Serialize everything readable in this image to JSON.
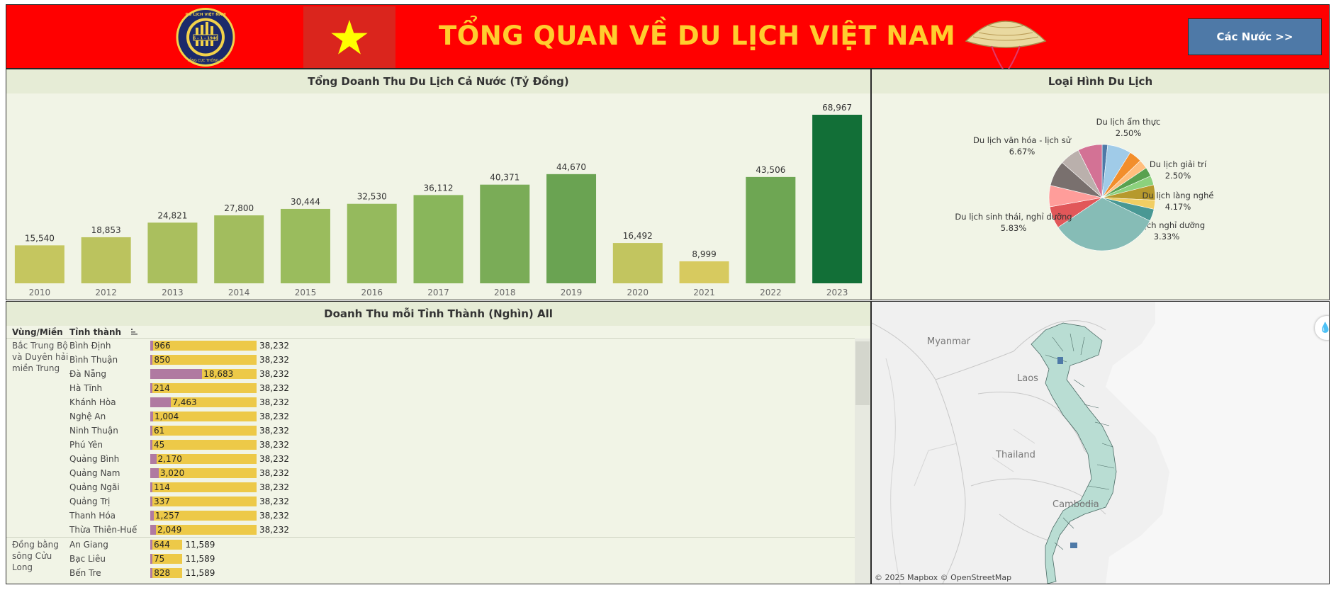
{
  "banner": {
    "title": "TỔNG QUAN VỀ DU LỊCH VIỆT NAM",
    "nav_button": "Các Nước >>",
    "logo": {
      "top_text": "DU LỊCH VIỆT NAM",
      "center_text": "6 - 1 - 1946",
      "bottom_text": "TỔNG CỤC THỐNG KÊ"
    },
    "colors": {
      "background": "#ff0000",
      "title": "#ffcd2e",
      "button": "#4e79a7"
    }
  },
  "revenue_panel": {
    "title": "Tổng Doanh Thu Du Lịch Cả Nước (Tỷ Đồng)"
  },
  "pie_panel": {
    "title": "Loại Hình Du Lịch"
  },
  "province_panel": {
    "title": "Doanh Thu mỗi Tỉnh Thành (Nghìn) All",
    "col_region": "Vùng/Miền",
    "col_province": "Tỉnh thành",
    "sort_icon": "sort-icon",
    "regions": [
      {
        "name": "Bắc Trung Bộ và Duyên hải miền Trung",
        "total": 38232,
        "total_label": "38,232",
        "rows": [
          {
            "name": "Bình Định",
            "value": 966,
            "label": "966"
          },
          {
            "name": "Bình Thuận",
            "value": 850,
            "label": "850"
          },
          {
            "name": "Đà Nẵng",
            "value": 18683,
            "label": "18,683"
          },
          {
            "name": "Hà Tĩnh",
            "value": 214,
            "label": "214"
          },
          {
            "name": "Khánh Hòa",
            "value": 7463,
            "label": "7,463"
          },
          {
            "name": "Nghệ An",
            "value": 1004,
            "label": "1,004"
          },
          {
            "name": "Ninh Thuận",
            "value": 61,
            "label": "61"
          },
          {
            "name": "Phú Yên",
            "value": 45,
            "label": "45"
          },
          {
            "name": "Quảng Bình",
            "value": 2170,
            "label": "2,170"
          },
          {
            "name": "Quảng Nam",
            "value": 3020,
            "label": "3,020"
          },
          {
            "name": "Quảng Ngãi",
            "value": 114,
            "label": "114"
          },
          {
            "name": "Quảng Trị",
            "value": 337,
            "label": "337"
          },
          {
            "name": "Thanh Hóa",
            "value": 1257,
            "label": "1,257"
          },
          {
            "name": "Thừa Thiên-Huế",
            "value": 2049,
            "label": "2,049"
          }
        ]
      },
      {
        "name": "Đồng bằng sông Cửu Long",
        "total": 11589,
        "total_label": "11,589",
        "rows": [
          {
            "name": "An Giang",
            "value": 644,
            "label": "644"
          },
          {
            "name": "Bạc Liêu",
            "value": 75,
            "label": "75"
          },
          {
            "name": "Bến Tre",
            "value": 828,
            "label": "828"
          }
        ]
      }
    ],
    "colors": {
      "total_bar": "#edc948",
      "value_bar": "#b07aa1"
    }
  },
  "map_panel": {
    "labels": [
      "Myanmar",
      "Laos",
      "Thailand",
      "Cambodia"
    ],
    "credit": "© 2025 Mapbox  © OpenStreetMap",
    "control_icon": "droplet-icon"
  },
  "chart_data": [
    {
      "type": "bar",
      "title": "Tổng Doanh Thu Du Lịch Cả Nước (Tỷ Đồng)",
      "categories": [
        "2010",
        "2012",
        "2013",
        "2014",
        "2015",
        "2016",
        "2017",
        "2018",
        "2019",
        "2020",
        "2021",
        "2022",
        "2023"
      ],
      "values": [
        15540,
        18853,
        24821,
        27800,
        30444,
        32530,
        36112,
        40371,
        44670,
        16492,
        8999,
        43506,
        68967
      ],
      "labels": [
        "15,540",
        "18,853",
        "24,821",
        "27,800",
        "30,444",
        "32,530",
        "36,112",
        "40,371",
        "44,670",
        "16,492",
        "8,999",
        "43,506",
        "68,967"
      ],
      "ylim": [
        0,
        68967
      ],
      "color_scale": {
        "low": "#f1d060",
        "mid": "#8fb95d",
        "high": "#126f37"
      },
      "grid": false
    },
    {
      "type": "pie",
      "title": "Loại Hình Du Lịch",
      "slices": [
        {
          "label": "",
          "value": 1.5,
          "color": "#4e79a7"
        },
        {
          "label": "",
          "value": 6.5,
          "color": "#a0cbe8"
        },
        {
          "label": "",
          "value": 3.5,
          "color": "#f28e2b"
        },
        {
          "label": "Du lịch ẩm thực",
          "pct_label": "2.50%",
          "value": 2.5,
          "color": "#ffbe7d"
        },
        {
          "label": "Du lịch giải trí",
          "pct_label": "2.50%",
          "value": 2.5,
          "color": "#59a14f"
        },
        {
          "label": "",
          "value": 2.5,
          "color": "#8cd17d"
        },
        {
          "label": "Du lịch làng nghề",
          "pct_label": "4.17%",
          "value": 4.17,
          "color": "#b6992d"
        },
        {
          "label": "",
          "value": 2.5,
          "color": "#f1ce63"
        },
        {
          "label": "Du lịch nghỉ dưỡng",
          "pct_label": "3.33%",
          "value": 3.33,
          "color": "#499894"
        },
        {
          "label": "",
          "value": 30,
          "color": "#86bcb6"
        },
        {
          "label": "",
          "value": 6,
          "color": "#e15759"
        },
        {
          "label": "Du lịch sinh thái, nghỉ dưỡng",
          "pct_label": "5.83%",
          "value": 5.83,
          "color": "#ff9d9a"
        },
        {
          "label": "",
          "value": 7,
          "color": "#79706e"
        },
        {
          "label": "",
          "value": 5.5,
          "color": "#bab0ac"
        },
        {
          "label": "Du lịch văn hóa - lịch sử",
          "pct_label": "6.67%",
          "value": 6.67,
          "color": "#d37295"
        }
      ]
    }
  ]
}
